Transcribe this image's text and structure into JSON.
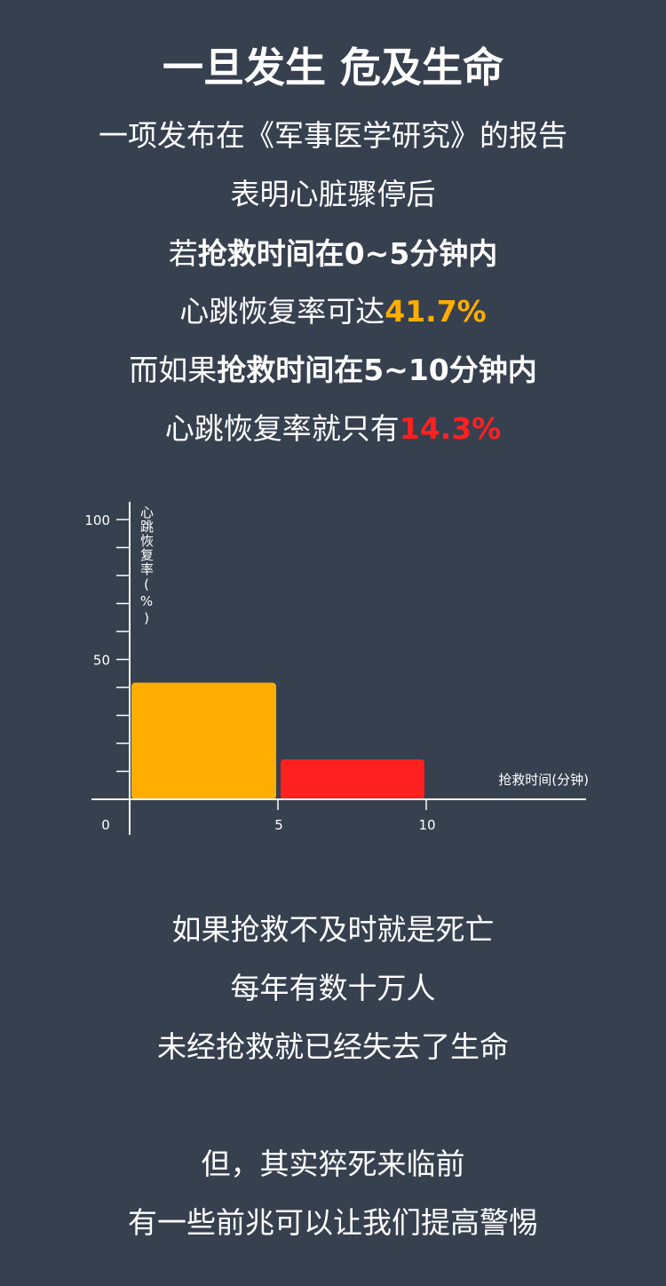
{
  "header": {
    "title": "一旦发生 危及生命",
    "lines": [
      {
        "plain": "一项发布在《军事医学研究》的报告"
      },
      {
        "plain": "表明心脏骤停后"
      },
      {
        "plain": "若",
        "bold": "抢救时间在0~5分钟内"
      },
      {
        "plain": "心跳恢复率可达",
        "highlight": "41.7%"
      },
      {
        "plain": "而如果",
        "bold": "抢救时间在5~10分钟内"
      },
      {
        "plain": "心跳恢复率就只有",
        "highlight": "14.3%"
      }
    ]
  },
  "colors": {
    "background": "#36404f",
    "orange": "#ffad00",
    "red": "#ff2020"
  },
  "chart_data": {
    "type": "bar",
    "ylabel": "心跳恢复率(%)",
    "xlabel": "抢救时间(分钟)",
    "ylim": [
      0,
      100
    ],
    "xlim": [
      0,
      15
    ],
    "y_ticks": [
      0,
      10,
      20,
      30,
      40,
      50,
      60,
      70,
      80,
      90,
      100
    ],
    "y_tick_labels": [
      "100",
      "50",
      "0"
    ],
    "x_tick_labels": [
      "5",
      "10"
    ],
    "bars": [
      {
        "x_start": 0,
        "x_end": 5,
        "value": 41.7,
        "color": "#ffad00"
      },
      {
        "x_start": 5,
        "x_end": 10,
        "value": 14.3,
        "color": "#ff2020"
      }
    ],
    "grid": false
  },
  "footer": {
    "lines1": [
      "如果抢救不及时就是死亡",
      "每年有数十万人",
      "未经抢救就已经失去了生命"
    ],
    "lines2": [
      "但，其实猝死来临前",
      "有一些前兆可以让我们提高警惕"
    ]
  }
}
